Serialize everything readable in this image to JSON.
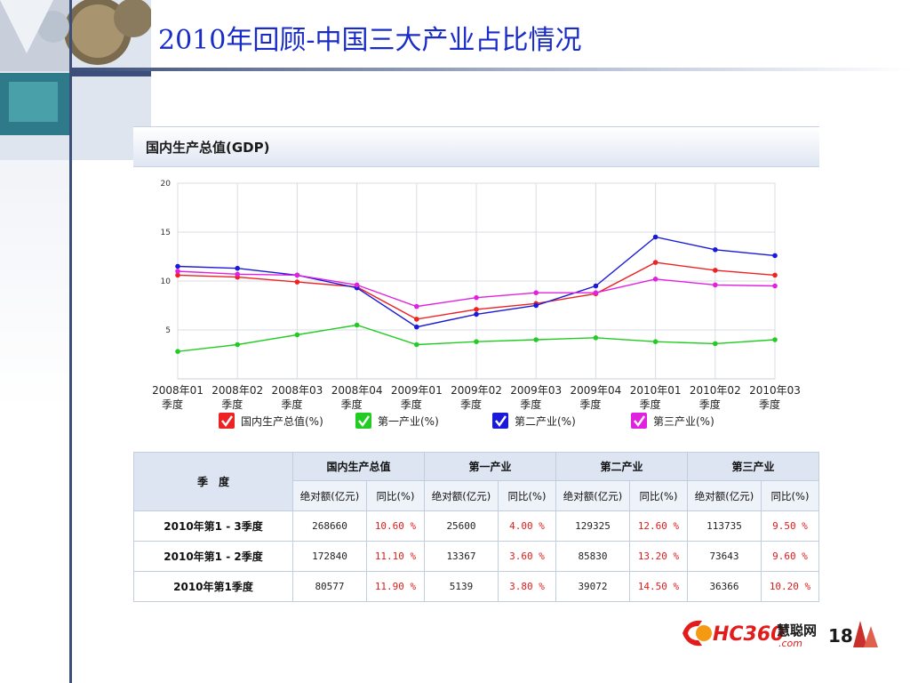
{
  "slide": {
    "title": "2010年回顾-中国三大产业占比情况"
  },
  "panel": {
    "title": "国内生产总值(GDP)"
  },
  "chart_data": {
    "type": "line",
    "title": "",
    "ylim": [
      0,
      20
    ],
    "yticks": [
      5,
      10,
      15,
      20
    ],
    "grid": true,
    "legend_position": "bottom",
    "categories": [
      [
        "2008年01",
        "季度"
      ],
      [
        "2008年02",
        "季度"
      ],
      [
        "2008年03",
        "季度"
      ],
      [
        "2008年04",
        "季度"
      ],
      [
        "2009年01",
        "季度"
      ],
      [
        "2009年02",
        "季度"
      ],
      [
        "2009年03",
        "季度"
      ],
      [
        "2009年04",
        "季度"
      ],
      [
        "2010年01",
        "季度"
      ],
      [
        "2010年02",
        "季度"
      ],
      [
        "2010年03",
        "季度"
      ]
    ],
    "series": [
      {
        "name": "国内生产总值(%)",
        "color": "#ee2222",
        "values": [
          10.6,
          10.4,
          9.9,
          9.4,
          6.1,
          7.1,
          7.7,
          8.7,
          11.9,
          11.1,
          10.6
        ]
      },
      {
        "name": "第一产业(%)",
        "color": "#22cc22",
        "values": [
          2.8,
          3.5,
          4.5,
          5.5,
          3.5,
          3.8,
          4.0,
          4.2,
          3.8,
          3.6,
          4.0
        ]
      },
      {
        "name": "第二产业(%)",
        "color": "#1a1ad8",
        "values": [
          11.5,
          11.3,
          10.6,
          9.3,
          5.3,
          6.6,
          7.5,
          9.5,
          14.5,
          13.2,
          12.6
        ]
      },
      {
        "name": "第三产业(%)",
        "color": "#e022e0",
        "values": [
          11.0,
          10.7,
          10.6,
          9.6,
          7.4,
          8.3,
          8.8,
          8.8,
          10.2,
          9.6,
          9.5
        ]
      }
    ]
  },
  "table": {
    "season_header": "季　度",
    "groups": [
      "国内生产总值",
      "第一产业",
      "第二产业",
      "第三产业"
    ],
    "abs_label": "绝对额(亿元)",
    "yoy_label": "同比(%)",
    "rows": [
      {
        "label": "2010年第1 - 3季度",
        "cells": [
          "268660",
          "10.60 %",
          "25600",
          "4.00 %",
          "129325",
          "12.60 %",
          "113735",
          "9.50 %"
        ]
      },
      {
        "label": "2010年第1 - 2季度",
        "cells": [
          "172840",
          "11.10 %",
          "13367",
          "3.60 %",
          "85830",
          "13.20 %",
          "73643",
          "9.60 %"
        ]
      },
      {
        "label": "2010年第1季度",
        "cells": [
          "80577",
          "11.90 %",
          "5139",
          "3.80 %",
          "39072",
          "14.50 %",
          "36366",
          "10.20 %"
        ]
      }
    ]
  },
  "logo": {
    "text": "HC360",
    "suffix": "慧聪网",
    "sub": ".com",
    "number": "18"
  }
}
